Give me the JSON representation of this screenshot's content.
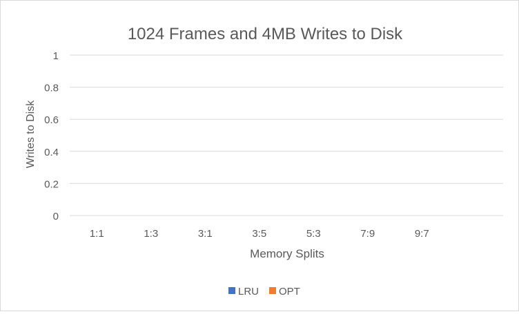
{
  "chart_data": {
    "type": "bar",
    "title": "1024 Frames and 4MB Writes to Disk",
    "xlabel": "Memory Splits",
    "ylabel": "Writes to Disk",
    "categories": [
      "1:1",
      "1:3",
      "3:1",
      "3:5",
      "5:3",
      "7:9",
      "9:7"
    ],
    "extra_slots": 1,
    "yticks": [
      "0",
      "0.2",
      "0.4",
      "0.6",
      "0.8",
      "1"
    ],
    "ylim": [
      0,
      1
    ],
    "grid": true,
    "legend_position": "bottom",
    "series": [
      {
        "name": "LRU",
        "color": "#4472c4",
        "values": [
          0,
          0,
          0,
          0,
          0,
          0,
          0
        ]
      },
      {
        "name": "OPT",
        "color": "#ed7d31",
        "values": [
          0,
          0,
          0,
          0,
          0,
          0,
          0
        ]
      }
    ]
  }
}
